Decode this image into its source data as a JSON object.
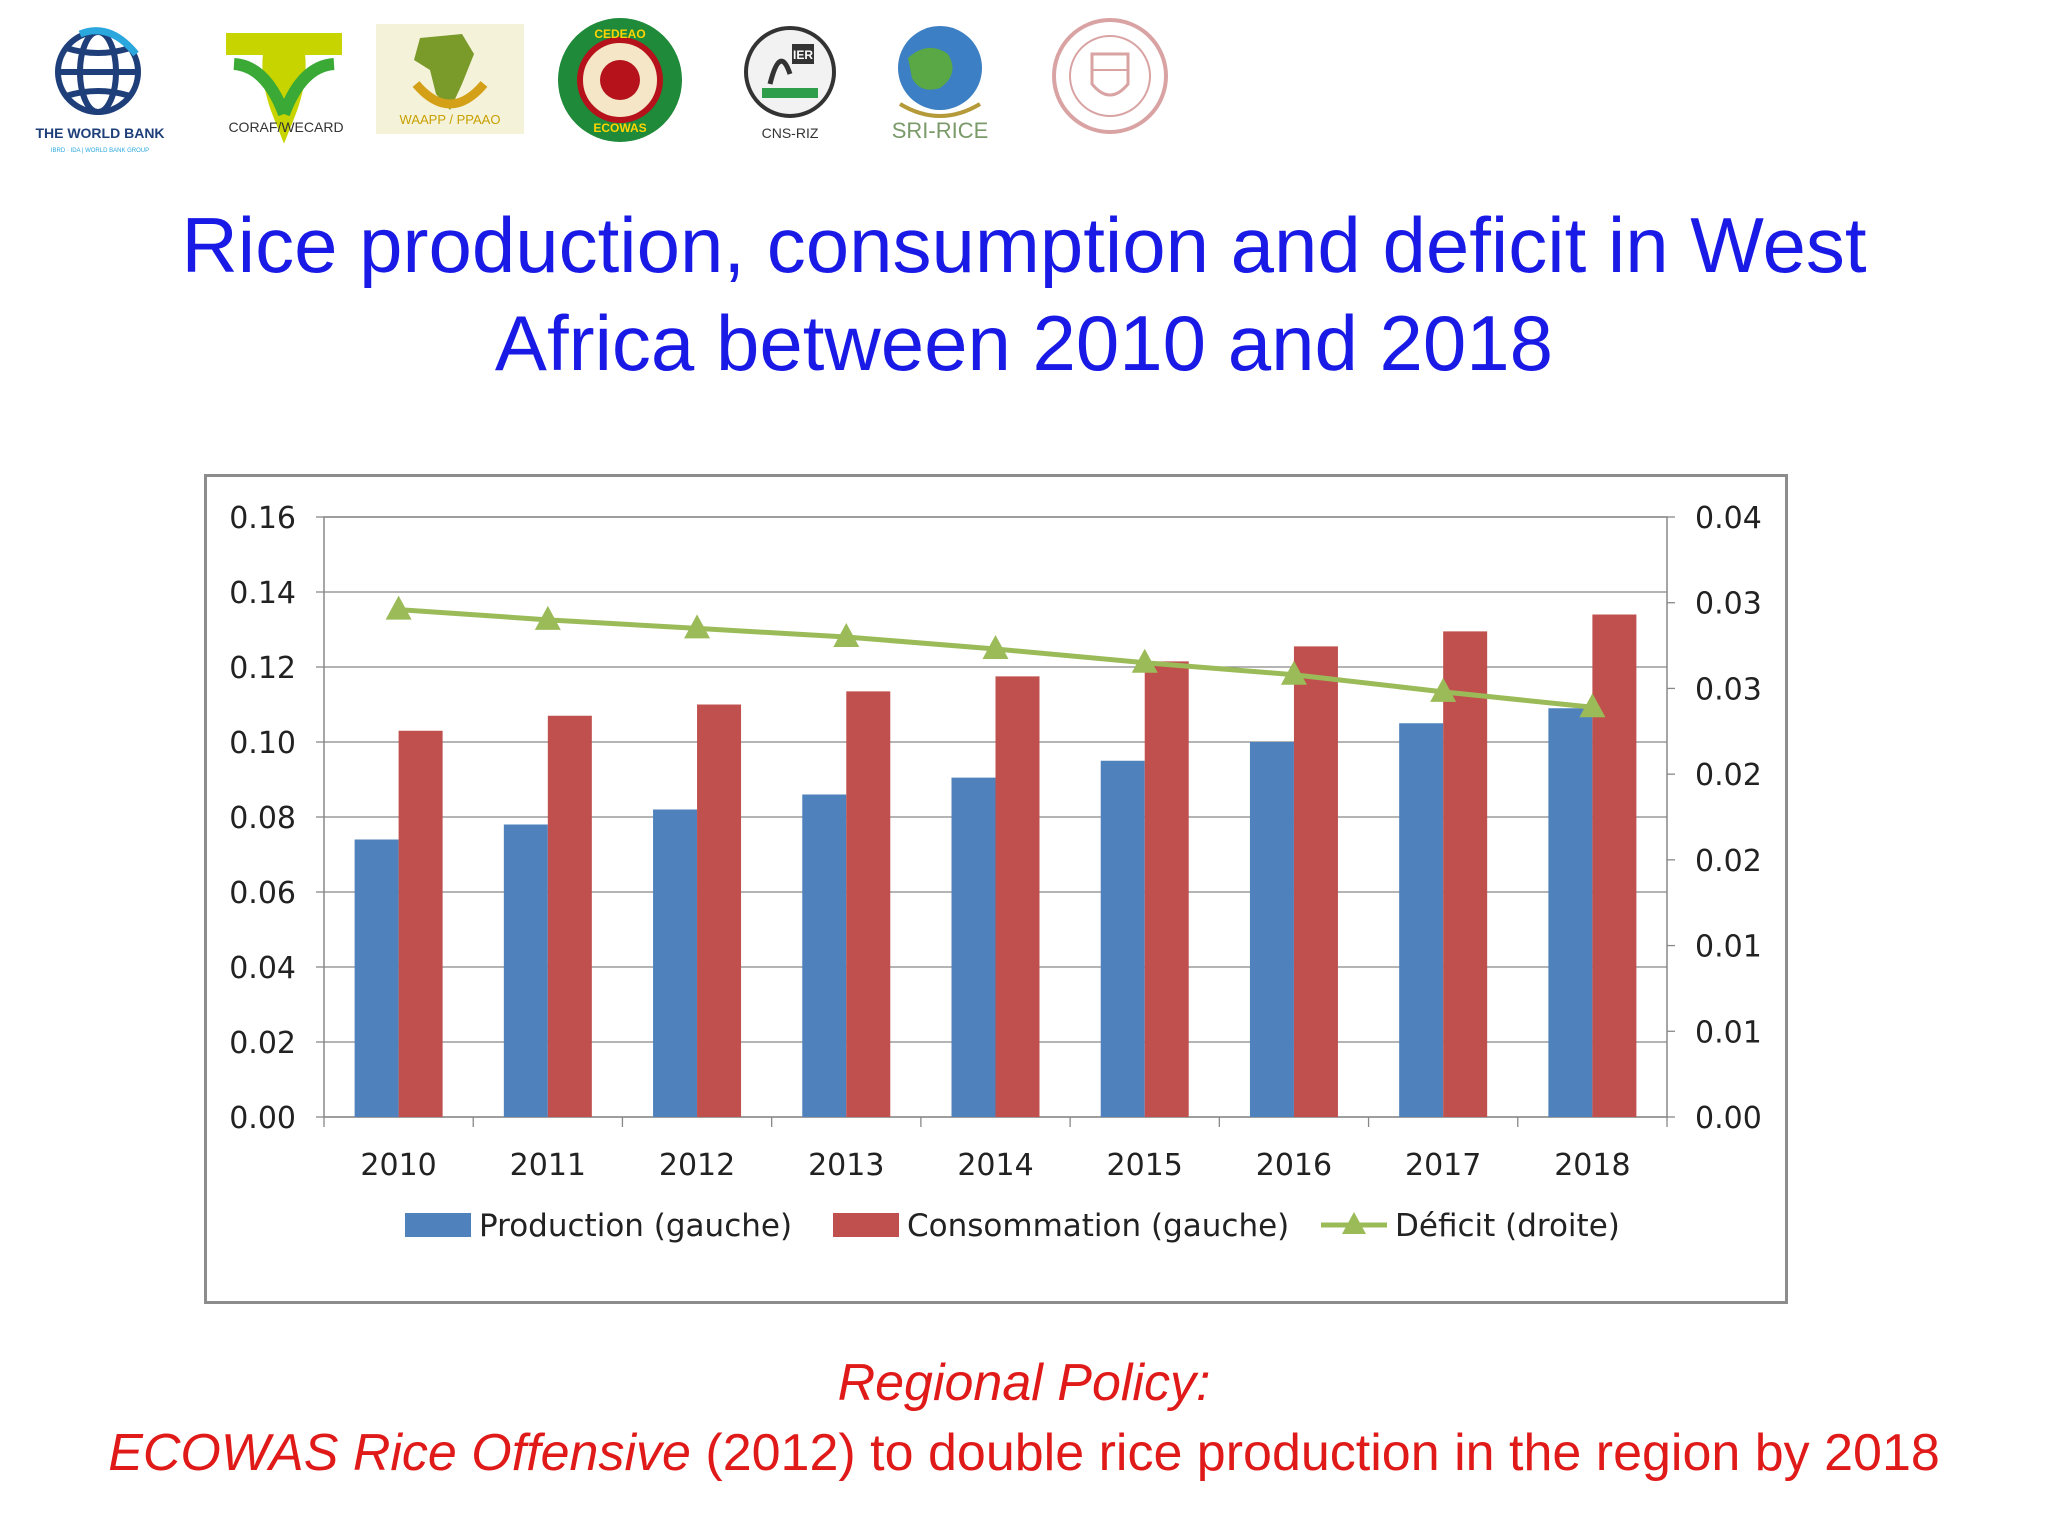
{
  "logos": [
    {
      "name": "world-bank-logo",
      "label": "THE WORLD BANK",
      "sublabel": "IBRD · IDA | WORLD BANK GROUP"
    },
    {
      "name": "coraf-logo",
      "label": "CORAF/WECARD"
    },
    {
      "name": "waapp-logo",
      "label": "WAAPP / PPAAO"
    },
    {
      "name": "ecowas-logo",
      "label_top": "CEDEAO",
      "label_bottom": "ECOWAS"
    },
    {
      "name": "cns-riz-logo",
      "label": "CNS-RIZ",
      "badge": "IER"
    },
    {
      "name": "sri-rice-logo",
      "label": "SRI-RICE"
    },
    {
      "name": "cornell-seal-logo",
      "label": ""
    }
  ],
  "title": {
    "line1": "Rice production, consumption and deficit in West",
    "line2": "Africa between 2010 and 2018"
  },
  "chart_data": {
    "type": "bar",
    "categories": [
      "2010",
      "2011",
      "2012",
      "2013",
      "2014",
      "2015",
      "2016",
      "2017",
      "2018"
    ],
    "series": [
      {
        "name": "Production (gauche)",
        "type": "bar",
        "axis": "left",
        "color": "#4f81bd",
        "values": [
          0.074,
          0.078,
          0.082,
          0.086,
          0.0905,
          0.095,
          0.1,
          0.105,
          0.109
        ]
      },
      {
        "name": "Consommation (gauche)",
        "type": "bar",
        "axis": "left",
        "color": "#c0504d",
        "values": [
          0.103,
          0.107,
          0.11,
          0.1135,
          0.1175,
          0.1215,
          0.1255,
          0.1295,
          0.134
        ]
      },
      {
        "name": "Déficit (droite)",
        "type": "line",
        "axis": "right",
        "color": "#9bbb59",
        "marker": "triangle",
        "values": [
          0.0296,
          0.029,
          0.0285,
          0.028,
          0.0273,
          0.0265,
          0.0258,
          0.0248,
          0.0239
        ]
      }
    ],
    "left_axis": {
      "ylim": [
        0,
        0.16
      ],
      "ticks": [
        "0.00",
        "0.02",
        "0.04",
        "0.06",
        "0.08",
        "0.10",
        "0.12",
        "0.14",
        "0.16"
      ]
    },
    "right_axis": {
      "ylim": [
        0,
        0.035
      ],
      "ticks": [
        "0.00",
        "0.01",
        "0.01",
        "0.02",
        "0.02",
        "0.03",
        "0.03",
        "0.04"
      ]
    },
    "grid": true,
    "legend_position": "bottom"
  },
  "footer": {
    "line1": "Regional Policy:",
    "line2_italic": "ECOWAS Rice Offensive",
    "line2_rest": " (2012) to double rice production in the region by 2018"
  }
}
